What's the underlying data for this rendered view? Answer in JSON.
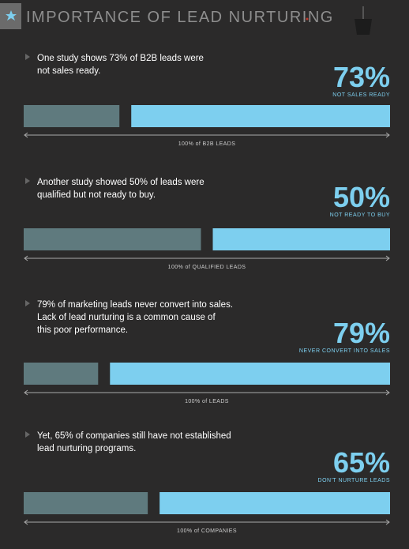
{
  "header": {
    "title": "IMPORTANCE OF LEAD NURTURING"
  },
  "xlim": [
    0,
    100
  ],
  "sections": [
    {
      "text": [
        "One study shows 73% of B2B leads were",
        "not sales ready."
      ],
      "value": 73,
      "value_label": "73%",
      "caption": "NOT SALES READY",
      "axis_label": "100% of B2B LEADS"
    },
    {
      "text": [
        "Another study showed 50% of leads were",
        "qualified but not ready to buy."
      ],
      "value": 50,
      "value_label": "50%",
      "caption": "NOT READY TO BUY",
      "axis_label": "100% of QUALIFIED LEADS"
    },
    {
      "text": [
        "79% of marketing leads never convert into sales.",
        "Lack of lead nurturing is a common cause of",
        "this poor performance."
      ],
      "value": 79,
      "value_label": "79%",
      "caption": "NEVER CONVERT INTO SALES",
      "axis_label": "100% of LEADS"
    },
    {
      "text": [
        "Yet, 65% of companies still have not established",
        "lead nurturing programs."
      ],
      "value": 65,
      "value_label": "65%",
      "caption": "DON'T NURTURE LEADS",
      "axis_label": "100% of COMPANIES"
    }
  ]
}
